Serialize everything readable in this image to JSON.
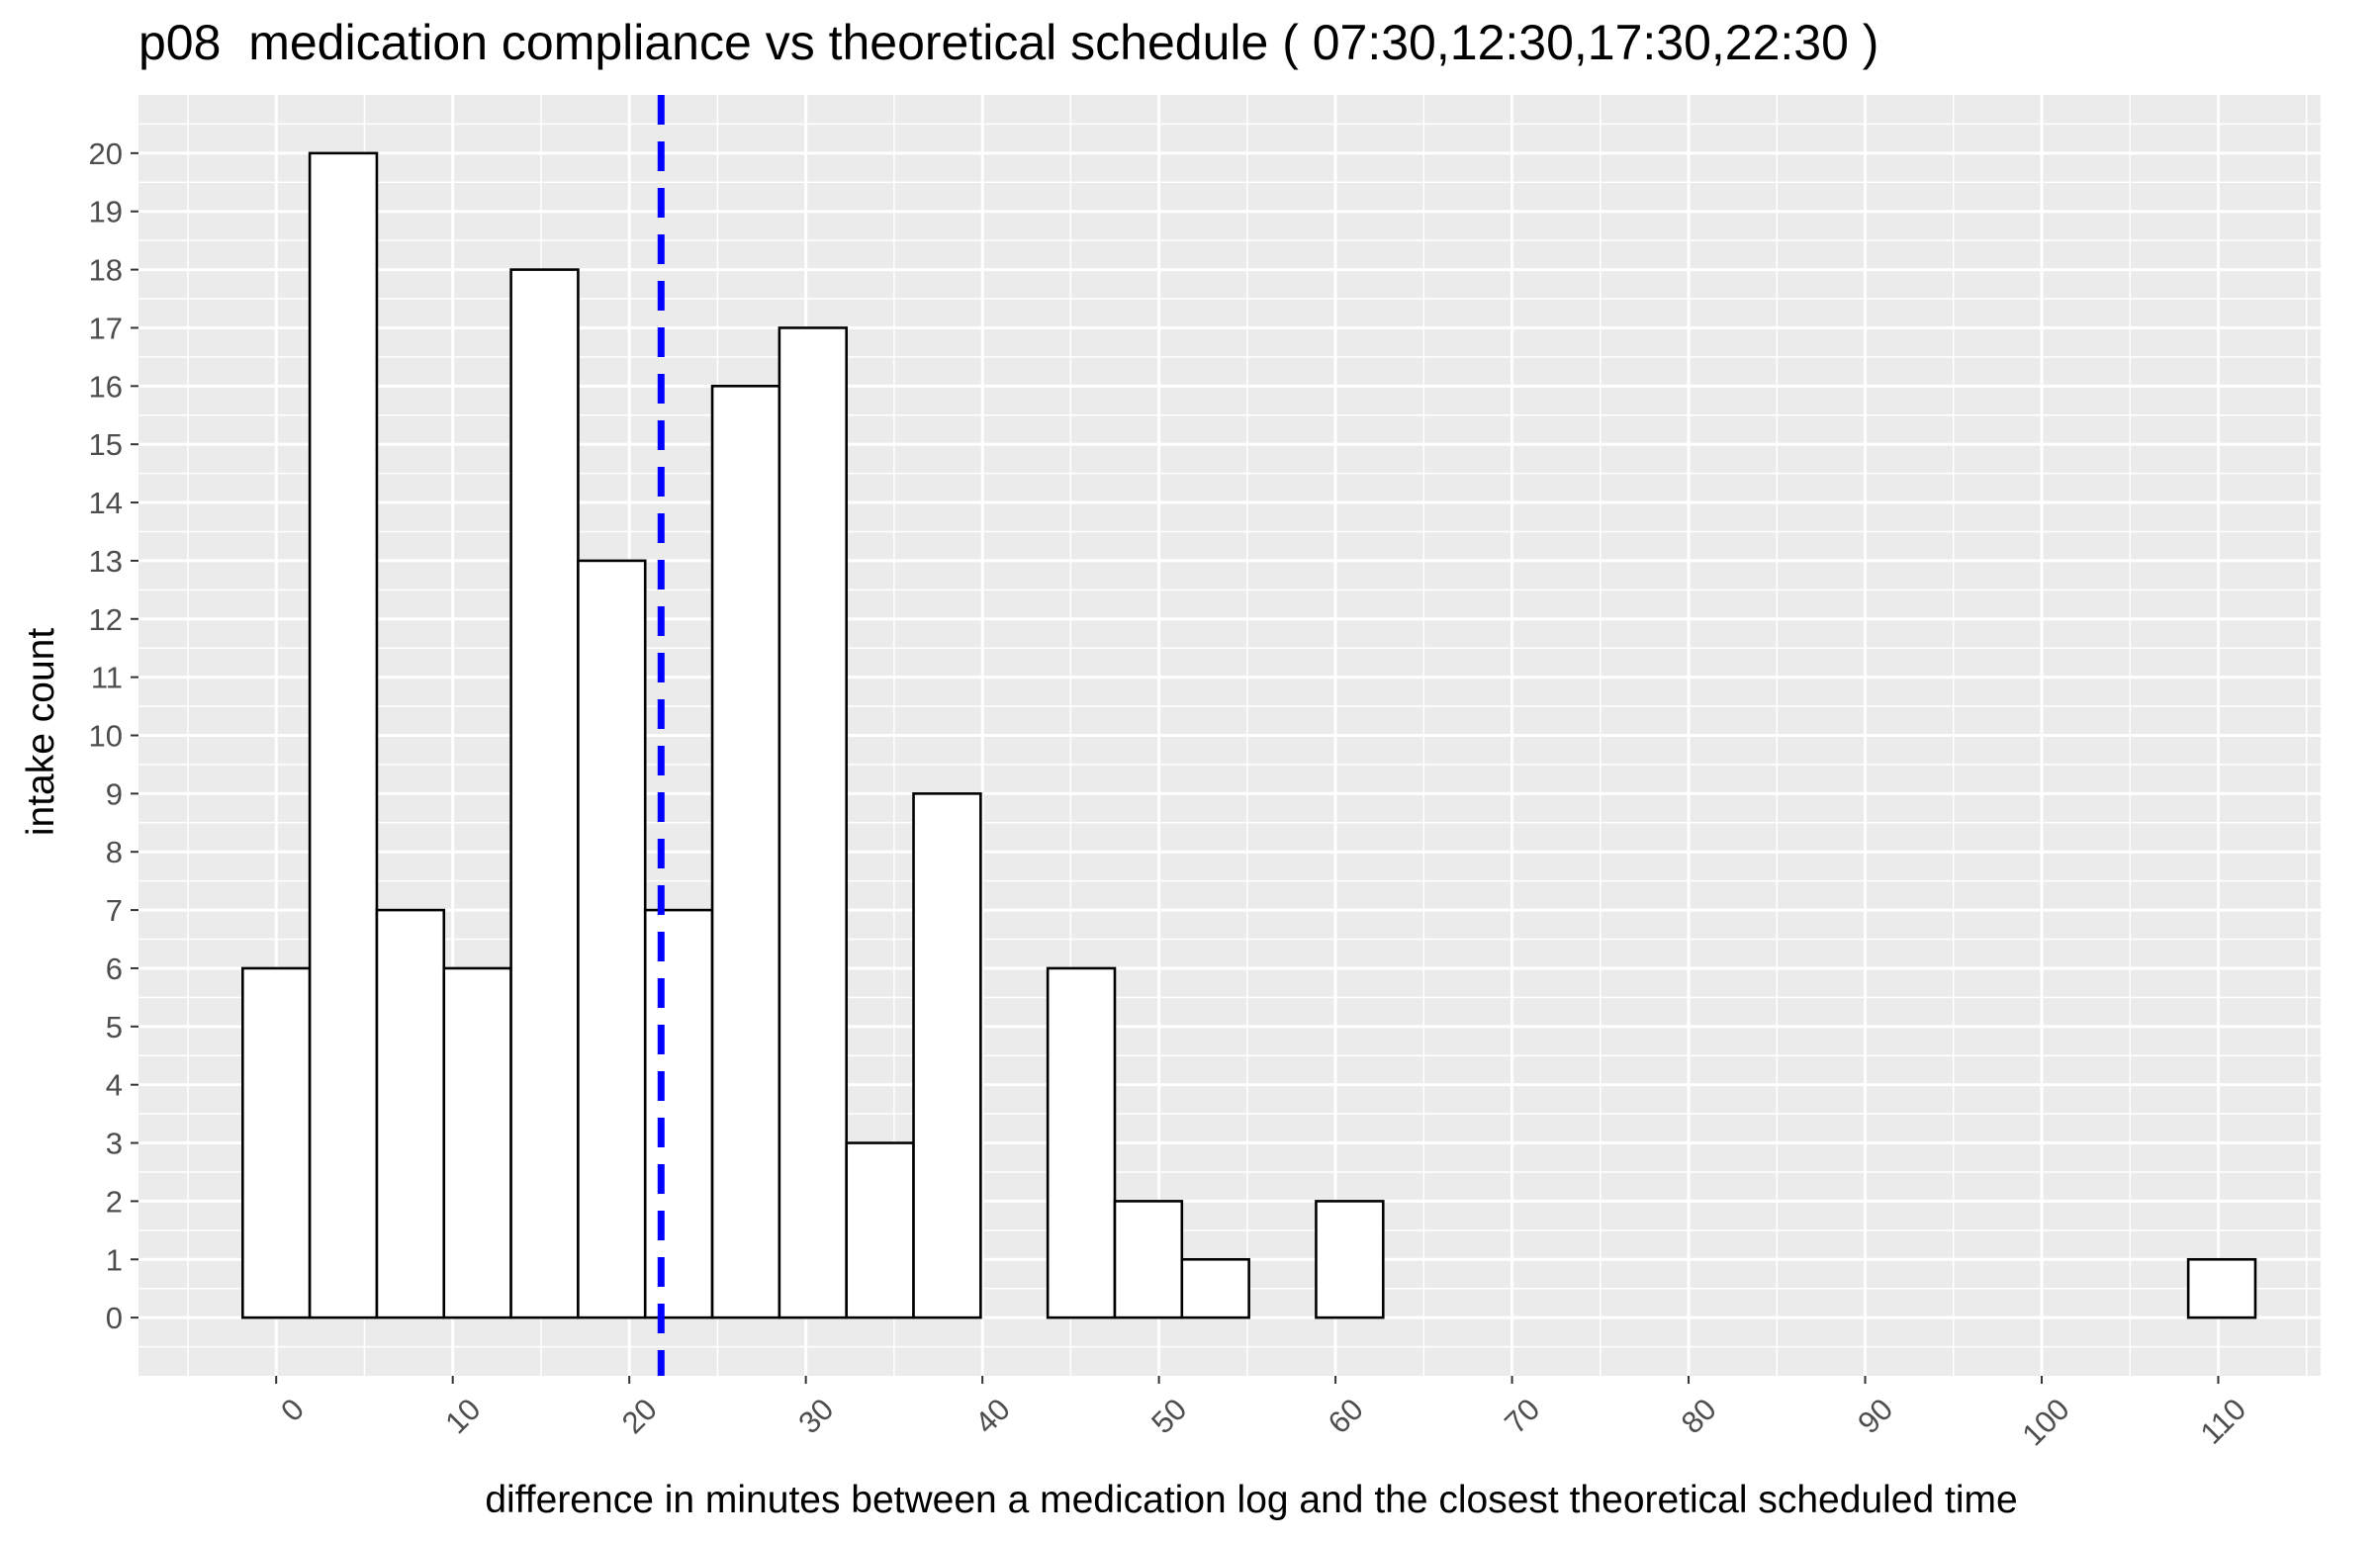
{
  "chart_data": {
    "type": "bar",
    "title": "p08  medication compliance vs theoretical schedule ( 07:30,12:30,17:30,22:30 )",
    "xlabel": "difference in minutes between a medication log and the closest theoretical scheduled time",
    "ylabel": "intake count",
    "xlim": [
      -7.8,
      115.8
    ],
    "ylim": [
      -1.0,
      21.0
    ],
    "x_ticks": [
      0,
      10,
      20,
      30,
      40,
      50,
      60,
      70,
      80,
      90,
      100,
      110
    ],
    "y_ticks": [
      0,
      1,
      2,
      3,
      4,
      5,
      6,
      7,
      8,
      9,
      10,
      11,
      12,
      13,
      14,
      15,
      16,
      17,
      18,
      19,
      20
    ],
    "bin_width": 3.8,
    "bin_start": -1.9,
    "values": [
      6,
      20,
      7,
      6,
      18,
      13,
      7,
      16,
      17,
      3,
      9,
      0,
      6,
      2,
      1,
      0,
      2,
      0,
      0,
      0,
      0,
      0,
      0,
      0,
      0,
      0,
      0,
      0,
      0,
      1
    ],
    "vline": {
      "x": 21.8,
      "color": "#0000ff",
      "style": "dashed"
    },
    "bar_fill": "#ffffff",
    "bar_stroke": "#000000",
    "panel_background": "#ebebeb",
    "grid": true,
    "legend": "none"
  }
}
